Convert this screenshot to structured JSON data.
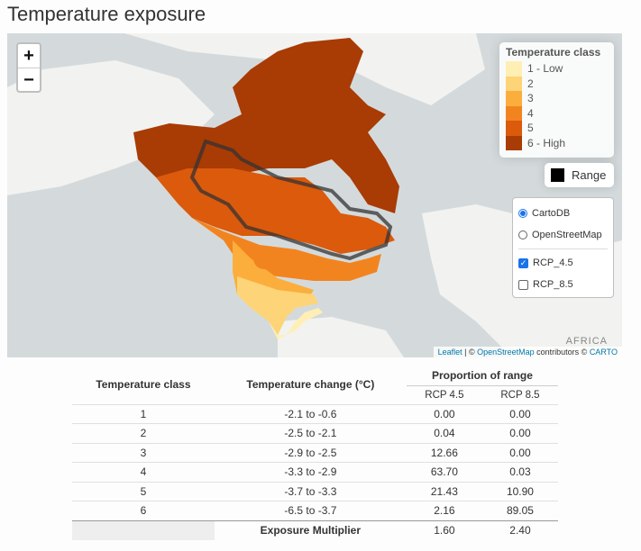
{
  "page": {
    "title": "Temperature exposure"
  },
  "map": {
    "zoom_in_label": "+",
    "zoom_out_label": "−",
    "legend": {
      "title": "Temperature class",
      "items": [
        {
          "label": "1 - Low",
          "color": "#ffefb5"
        },
        {
          "label": "2",
          "color": "#fdd477"
        },
        {
          "label": "3",
          "color": "#fbae3c"
        },
        {
          "label": "4",
          "color": "#f2841f"
        },
        {
          "label": "5",
          "color": "#db5a0c"
        },
        {
          "label": "6 - High",
          "color": "#a93b04"
        }
      ]
    },
    "range_label": "Range",
    "layers": {
      "base": [
        {
          "label": "CartoDB",
          "selected": true
        },
        {
          "label": "OpenStreetMap",
          "selected": false
        }
      ],
      "overlays": [
        {
          "label": "RCP_4.5",
          "checked": true
        },
        {
          "label": "RCP_8.5",
          "checked": false
        }
      ]
    },
    "attribution": {
      "leaflet": "Leaflet",
      "sep": " | © ",
      "osm": "OpenStreetMap",
      "contrib": " contributors © ",
      "carto": "CARTO"
    },
    "place_label": "AFRICA"
  },
  "table": {
    "headers": {
      "class": "Temperature class",
      "change": "Temperature change (°C)",
      "group": "Proportion of range",
      "rcp45": "RCP 4.5",
      "rcp85": "RCP 8.5"
    },
    "rows": [
      {
        "cls": "1",
        "change": "-2.1 to -0.6",
        "rcp45": "0.00",
        "rcp85": "0.00"
      },
      {
        "cls": "2",
        "change": "-2.5 to -2.1",
        "rcp45": "0.04",
        "rcp85": "0.00"
      },
      {
        "cls": "3",
        "change": "-2.9 to -2.5",
        "rcp45": "12.66",
        "rcp85": "0.00"
      },
      {
        "cls": "4",
        "change": "-3.3 to -2.9",
        "rcp45": "63.70",
        "rcp85": "0.03"
      },
      {
        "cls": "5",
        "change": "-3.7 to -3.3",
        "rcp45": "21.43",
        "rcp85": "10.90"
      },
      {
        "cls": "6",
        "change": "-6.5 to -3.7",
        "rcp45": "2.16",
        "rcp85": "89.05"
      }
    ],
    "footer": {
      "label": "Exposure Multiplier",
      "rcp45": "1.60",
      "rcp85": "2.40"
    }
  }
}
